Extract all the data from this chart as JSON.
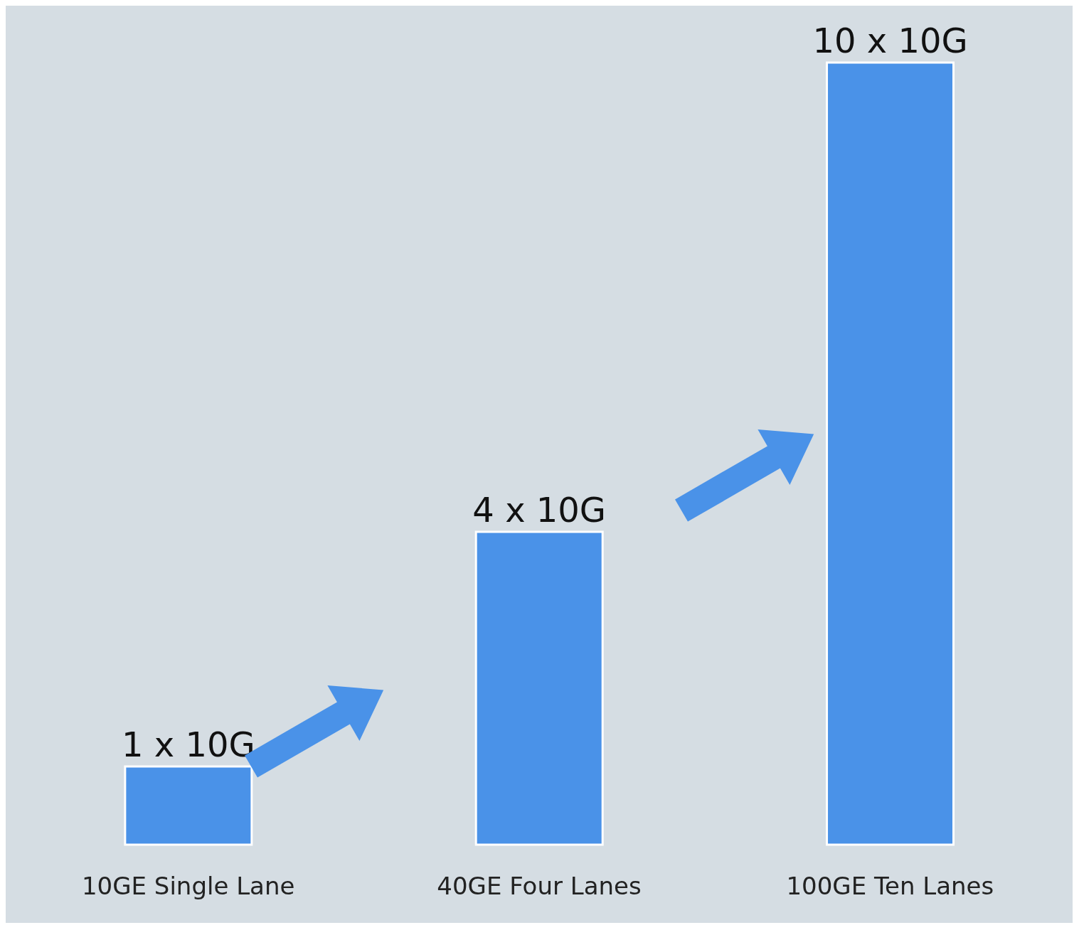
{
  "chart_data": {
    "type": "bar",
    "categories": [
      "10GE Single Lane",
      "40GE Four Lanes",
      "100GE Ten Lanes"
    ],
    "values": [
      1,
      4,
      10
    ],
    "value_labels": [
      "1 x 10G",
      "4 x 10G",
      "10 x 10G"
    ],
    "color": "#4a92e8"
  }
}
